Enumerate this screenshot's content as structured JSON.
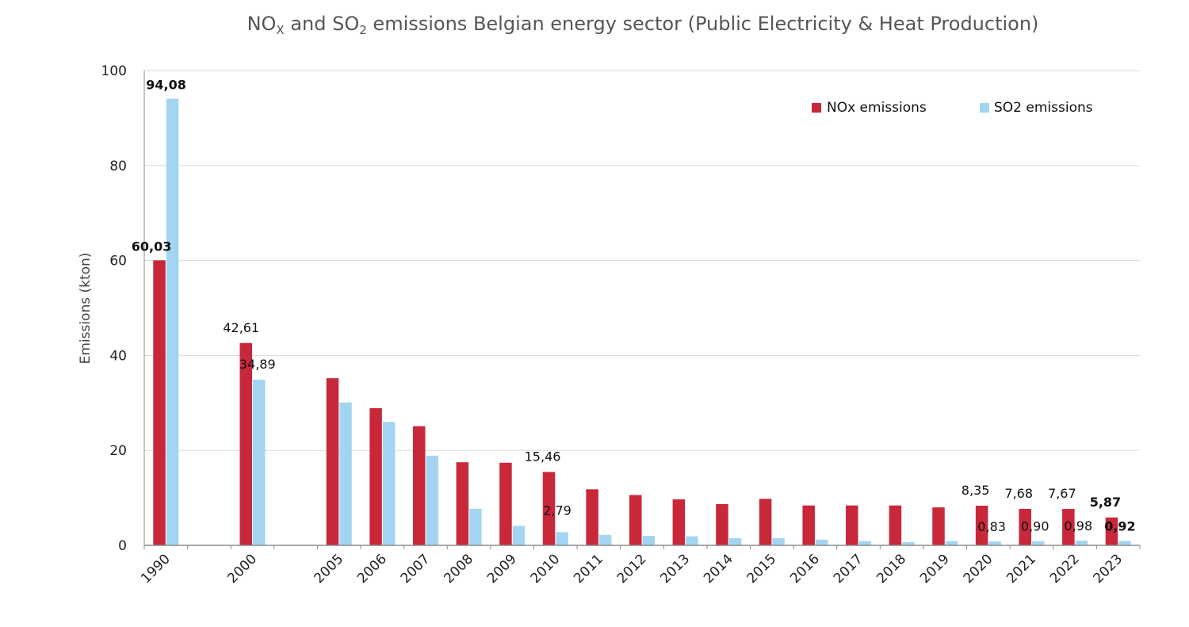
{
  "title": {
    "part1": "NO",
    "sub1": "X",
    "part2": " and SO",
    "sub2": "2",
    "part3": " emissions Belgian energy sector (Public Electricity & Heat Production)"
  },
  "chart_data": {
    "type": "bar",
    "title": "NOX and SO2 emissions Belgian energy sector (Public Electricity & Heat Production)",
    "xlabel": "",
    "ylabel": "Emissions (kton)",
    "ylim": [
      0,
      100
    ],
    "yticks": [
      "0",
      "20",
      "40",
      "60",
      "80",
      "100"
    ],
    "grid": true,
    "legend_position": "top-right",
    "categories": [
      "1990",
      "",
      "2000",
      "",
      "2005",
      "2006",
      "2007",
      "2008",
      "2009",
      "2010",
      "2011",
      "2012",
      "2013",
      "2014",
      "2015",
      "2016",
      "2017",
      "2018",
      "2019",
      "2020",
      "2021",
      "2022",
      "2023"
    ],
    "series": [
      {
        "name": "NOx emissions",
        "color": "#C8283A",
        "values": [
          60.03,
          null,
          42.61,
          null,
          35.2,
          28.9,
          25.1,
          17.5,
          17.4,
          15.46,
          11.8,
          10.6,
          9.7,
          8.7,
          9.8,
          8.4,
          8.4,
          8.4,
          8.0,
          8.35,
          7.68,
          7.67,
          5.87
        ]
      },
      {
        "name": "SO2 emissions",
        "color": "#A3D5F2",
        "values": [
          94.08,
          null,
          34.89,
          null,
          30.1,
          26.0,
          18.9,
          7.7,
          4.1,
          2.79,
          2.2,
          2.0,
          1.9,
          1.5,
          1.5,
          1.2,
          0.9,
          0.7,
          0.9,
          0.83,
          0.9,
          0.98,
          0.92
        ]
      }
    ],
    "data_labels": [
      {
        "series": 0,
        "index": 0,
        "text": "60,03",
        "bold": true
      },
      {
        "series": 1,
        "index": 0,
        "text": "94,08",
        "bold": true
      },
      {
        "series": 0,
        "index": 2,
        "text": "42,61",
        "bold": false
      },
      {
        "series": 1,
        "index": 2,
        "text": "34,89",
        "bold": false
      },
      {
        "series": 0,
        "index": 9,
        "text": "15,46",
        "bold": false
      },
      {
        "series": 1,
        "index": 9,
        "text": "2,79",
        "bold": false
      },
      {
        "series": 0,
        "index": 19,
        "text": "8,35",
        "bold": false
      },
      {
        "series": 1,
        "index": 19,
        "text": "0,83",
        "bold": false
      },
      {
        "series": 0,
        "index": 20,
        "text": "7,68",
        "bold": false
      },
      {
        "series": 1,
        "index": 20,
        "text": "0,90",
        "bold": false
      },
      {
        "series": 0,
        "index": 21,
        "text": "7,67",
        "bold": false
      },
      {
        "series": 1,
        "index": 21,
        "text": "0,98",
        "bold": false
      },
      {
        "series": 0,
        "index": 22,
        "text": "5,87",
        "bold": true
      },
      {
        "series": 1,
        "index": 22,
        "text": "0,92",
        "bold": true
      }
    ]
  }
}
